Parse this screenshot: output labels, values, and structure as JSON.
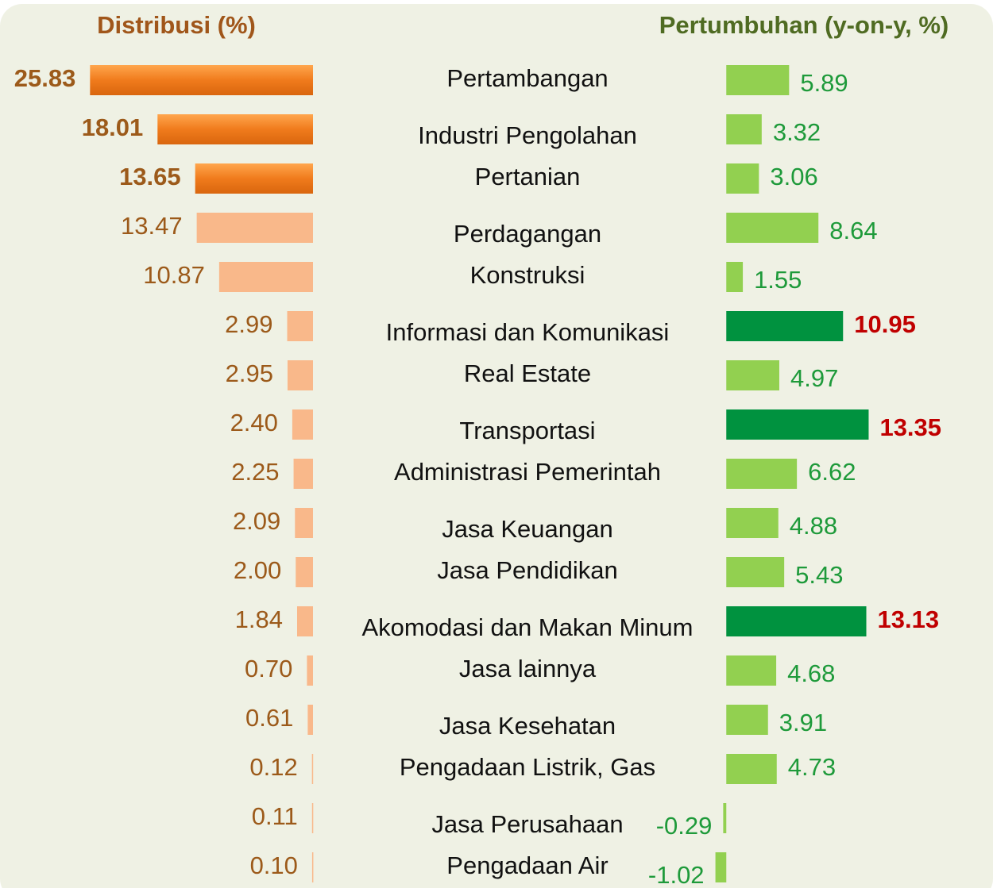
{
  "chart_data": {
    "type": "butterfly",
    "categories": [
      "Pertambangan",
      "Industri Pengolahan",
      "Pertanian",
      "Perdagangan",
      "Konstruksi",
      "Informasi dan Komunikasi",
      "Real Estate",
      "Transportasi",
      "Administrasi Pemerintah",
      "Jasa Keuangan",
      "Jasa Pendidikan",
      "Akomodasi dan Makan Minum",
      "Jasa lainnya",
      "Jasa Kesehatan",
      "Pengadaan Listrik, Gas",
      "Jasa Perusahaan",
      "Pengadaan Air"
    ],
    "series": [
      {
        "name": "Distribusi (%)",
        "side": "left",
        "color": "#f9b88a",
        "highlight_color": "#f07b1c",
        "label_color": "#9c5a1a",
        "highlight_label_color": "#9c5a1a",
        "highlight": [
          0,
          1,
          2
        ],
        "xlim": [
          0,
          30
        ],
        "values": [
          25.83,
          18.01,
          13.65,
          13.47,
          10.87,
          2.99,
          2.95,
          2.4,
          2.25,
          2.09,
          2.0,
          1.84,
          0.7,
          0.61,
          0.12,
          0.11,
          0.1
        ],
        "value_labels": [
          "25.83",
          "18.01",
          "13.65",
          "13.47",
          "10.87",
          "2.99",
          "2.95",
          "2.40",
          "2.25",
          "2.09",
          "2.00",
          "1.84",
          "0.70",
          "0.61",
          "0.12",
          "0.11",
          "0.10"
        ]
      },
      {
        "name": "Pertumbuhan (y-on-y, %)",
        "side": "right",
        "color": "#92d050",
        "highlight_color": "#00923f",
        "label_color": "#1e9a3a",
        "highlight_label_color": "#c00000",
        "highlight": [
          5,
          7,
          11
        ],
        "xlim": [
          -3,
          23
        ],
        "values": [
          5.89,
          3.32,
          3.06,
          8.64,
          1.55,
          10.95,
          4.97,
          13.35,
          6.62,
          4.88,
          5.43,
          13.13,
          4.68,
          3.91,
          4.73,
          -0.29,
          -1.02
        ],
        "value_labels": [
          "5.89",
          "3.32",
          "3.06",
          "8.64",
          "1.55",
          "10.95",
          "4.97",
          "13.35",
          "6.62",
          "4.88",
          "5.43",
          "13.13",
          "4.68",
          "3.91",
          "4.73",
          "-0.29",
          "-1.02"
        ]
      }
    ]
  }
}
